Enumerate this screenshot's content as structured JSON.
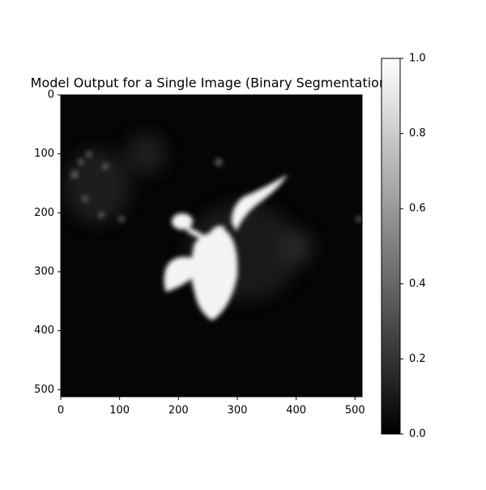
{
  "chart_data": {
    "type": "heatmap",
    "title": "Model Output for a Single Image (Binary Segmentation)",
    "xlim": [
      0,
      512
    ],
    "ylim": [
      512,
      0
    ],
    "xticks": [
      0,
      100,
      200,
      300,
      400,
      500
    ],
    "yticks": [
      0,
      100,
      200,
      300,
      400,
      500
    ],
    "colormap": "gray",
    "clim": [
      0,
      1
    ],
    "cticks": [
      {
        "value": 0,
        "label": "0.0"
      },
      {
        "value": 0.2,
        "label": "0.2"
      },
      {
        "value": 0.4,
        "label": "0.4"
      },
      {
        "value": 0.6,
        "label": "0.6"
      },
      {
        "value": 0.8,
        "label": "0.8"
      },
      {
        "value": 1,
        "label": "1.0"
      }
    ]
  }
}
